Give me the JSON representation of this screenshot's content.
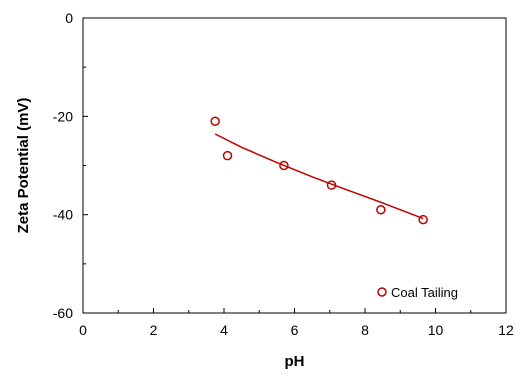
{
  "chart_data": {
    "type": "scatter",
    "title": "",
    "xlabel": "pH",
    "ylabel": "Zeta Potential (mV)",
    "xlim": [
      0,
      12
    ],
    "ylim": [
      -60,
      0
    ],
    "x_ticks": [
      0,
      2,
      4,
      6,
      8,
      10,
      12
    ],
    "y_ticks": [
      -60,
      -40,
      -20,
      0
    ],
    "x_tick_labels": [
      "0",
      "2",
      "4",
      "6",
      "8",
      "10",
      "12"
    ],
    "y_tick_labels": [
      "-60",
      "-40",
      "-20",
      "0"
    ],
    "grid": false,
    "legend_position": "bottom-right",
    "colors": {
      "series": "#c00000",
      "axis": "#000000"
    },
    "series": [
      {
        "name": "Coal Tailing",
        "marker": "open-circle",
        "x": [
          3.75,
          4.1,
          5.7,
          7.05,
          8.45,
          9.65
        ],
        "y": [
          -21,
          -28,
          -30,
          -34,
          -39,
          -41
        ]
      }
    ],
    "trendline": {
      "x": [
        3.75,
        4.5,
        5.5,
        6.5,
        7.5,
        8.5,
        9.65
      ],
      "y": [
        -23.6,
        -26.3,
        -29.4,
        -32.3,
        -35.0,
        -37.6,
        -40.8
      ]
    }
  }
}
